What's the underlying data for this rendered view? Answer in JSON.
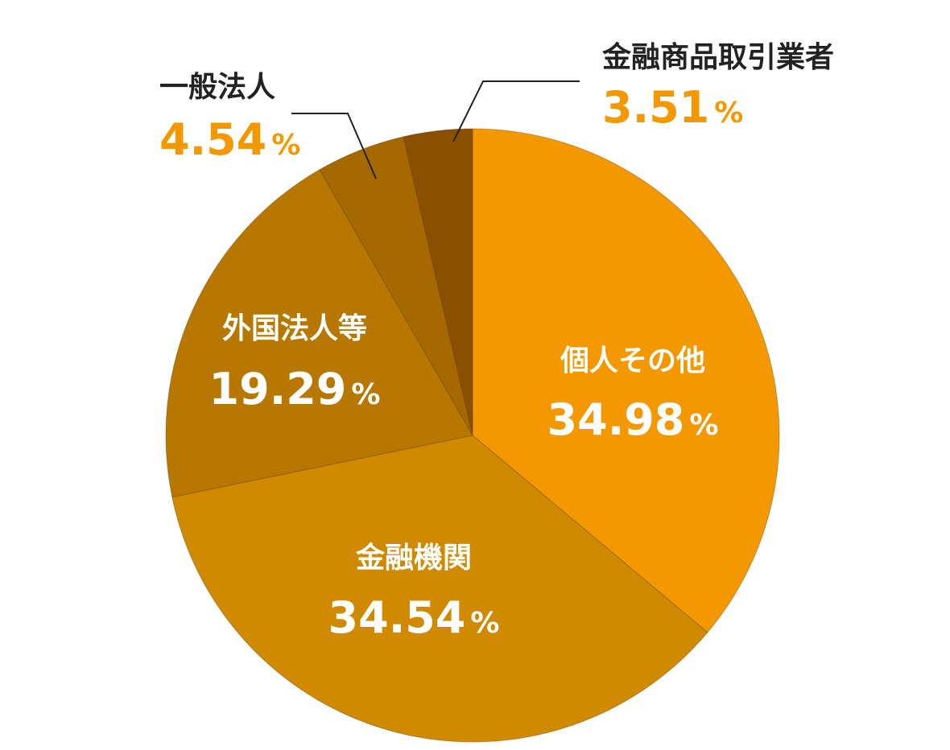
{
  "chart_data": {
    "type": "pie",
    "title": "",
    "start_angle_deg": 0,
    "direction": "clockwise",
    "unit": "%",
    "slices": [
      {
        "label": "個人その他",
        "value": 34.98,
        "display": "34.98",
        "color": "#f39800",
        "label_color": "#ffffff",
        "label_pos": "inside"
      },
      {
        "label": "金融機関",
        "value": 34.54,
        "display": "34.54",
        "color": "#cf8a00",
        "label_color": "#ffffff",
        "label_pos": "inside"
      },
      {
        "label": "外国法人等",
        "value": 19.29,
        "display": "19.29",
        "color": "#b87800",
        "label_color": "#ffffff",
        "label_pos": "inside"
      },
      {
        "label": "一般法人",
        "value": 4.54,
        "display": "4.54",
        "color": "#a66800",
        "label_color": "#f39800",
        "name_color": "#222222",
        "label_pos": "outside"
      },
      {
        "label": "金融商品取引業者",
        "value": 3.51,
        "display": "3.51",
        "color": "#8a5000",
        "label_color": "#f39800",
        "name_color": "#222222",
        "label_pos": "outside"
      }
    ]
  }
}
